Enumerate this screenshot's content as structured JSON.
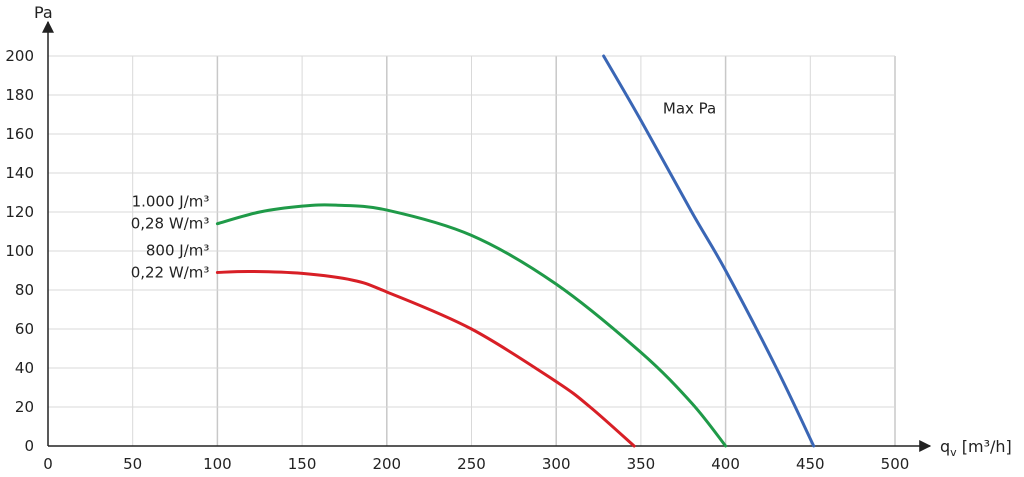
{
  "chart_data": {
    "type": "line",
    "xlabel": "q",
    "xlabel_sub": "v",
    "xlabel_unit": " [m³/h]",
    "ylabel": "Pa",
    "xlim": [
      0,
      500
    ],
    "ylim": [
      0,
      200
    ],
    "x_ticks": [
      0,
      50,
      100,
      150,
      200,
      250,
      300,
      350,
      400,
      450,
      500
    ],
    "y_ticks": [
      0,
      20,
      40,
      60,
      80,
      100,
      120,
      140,
      160,
      180,
      200
    ],
    "grid": true,
    "series": [
      {
        "name": "Max Pa",
        "color": "#3a66b5",
        "points": [
          [
            328,
            200
          ],
          [
            350,
            167
          ],
          [
            380,
            120
          ],
          [
            400,
            90
          ],
          [
            430,
            40
          ],
          [
            452,
            0
          ]
        ],
        "label_lines": [
          "Max Pa"
        ]
      },
      {
        "name": "1.000 J/m³ 0,28 W/m³",
        "color": "#1f9a48",
        "points": [
          [
            100,
            114
          ],
          [
            125,
            120
          ],
          [
            150,
            123
          ],
          [
            170,
            123.5
          ],
          [
            200,
            121
          ],
          [
            250,
            108
          ],
          [
            300,
            83
          ],
          [
            350,
            48
          ],
          [
            380,
            22
          ],
          [
            400,
            0
          ]
        ],
        "label_lines": [
          "1.000 J/m³",
          "0,28 W/m³"
        ]
      },
      {
        "name": "800 J/m³ 0,22 W/m³",
        "color": "#d81f26",
        "points": [
          [
            100,
            89
          ],
          [
            120,
            89.5
          ],
          [
            150,
            88.5
          ],
          [
            180,
            85
          ],
          [
            200,
            79
          ],
          [
            250,
            60
          ],
          [
            300,
            33
          ],
          [
            320,
            20
          ],
          [
            346,
            0
          ]
        ],
        "label_lines": [
          "800 J/m³",
          "0,22 W/m³"
        ]
      }
    ]
  }
}
